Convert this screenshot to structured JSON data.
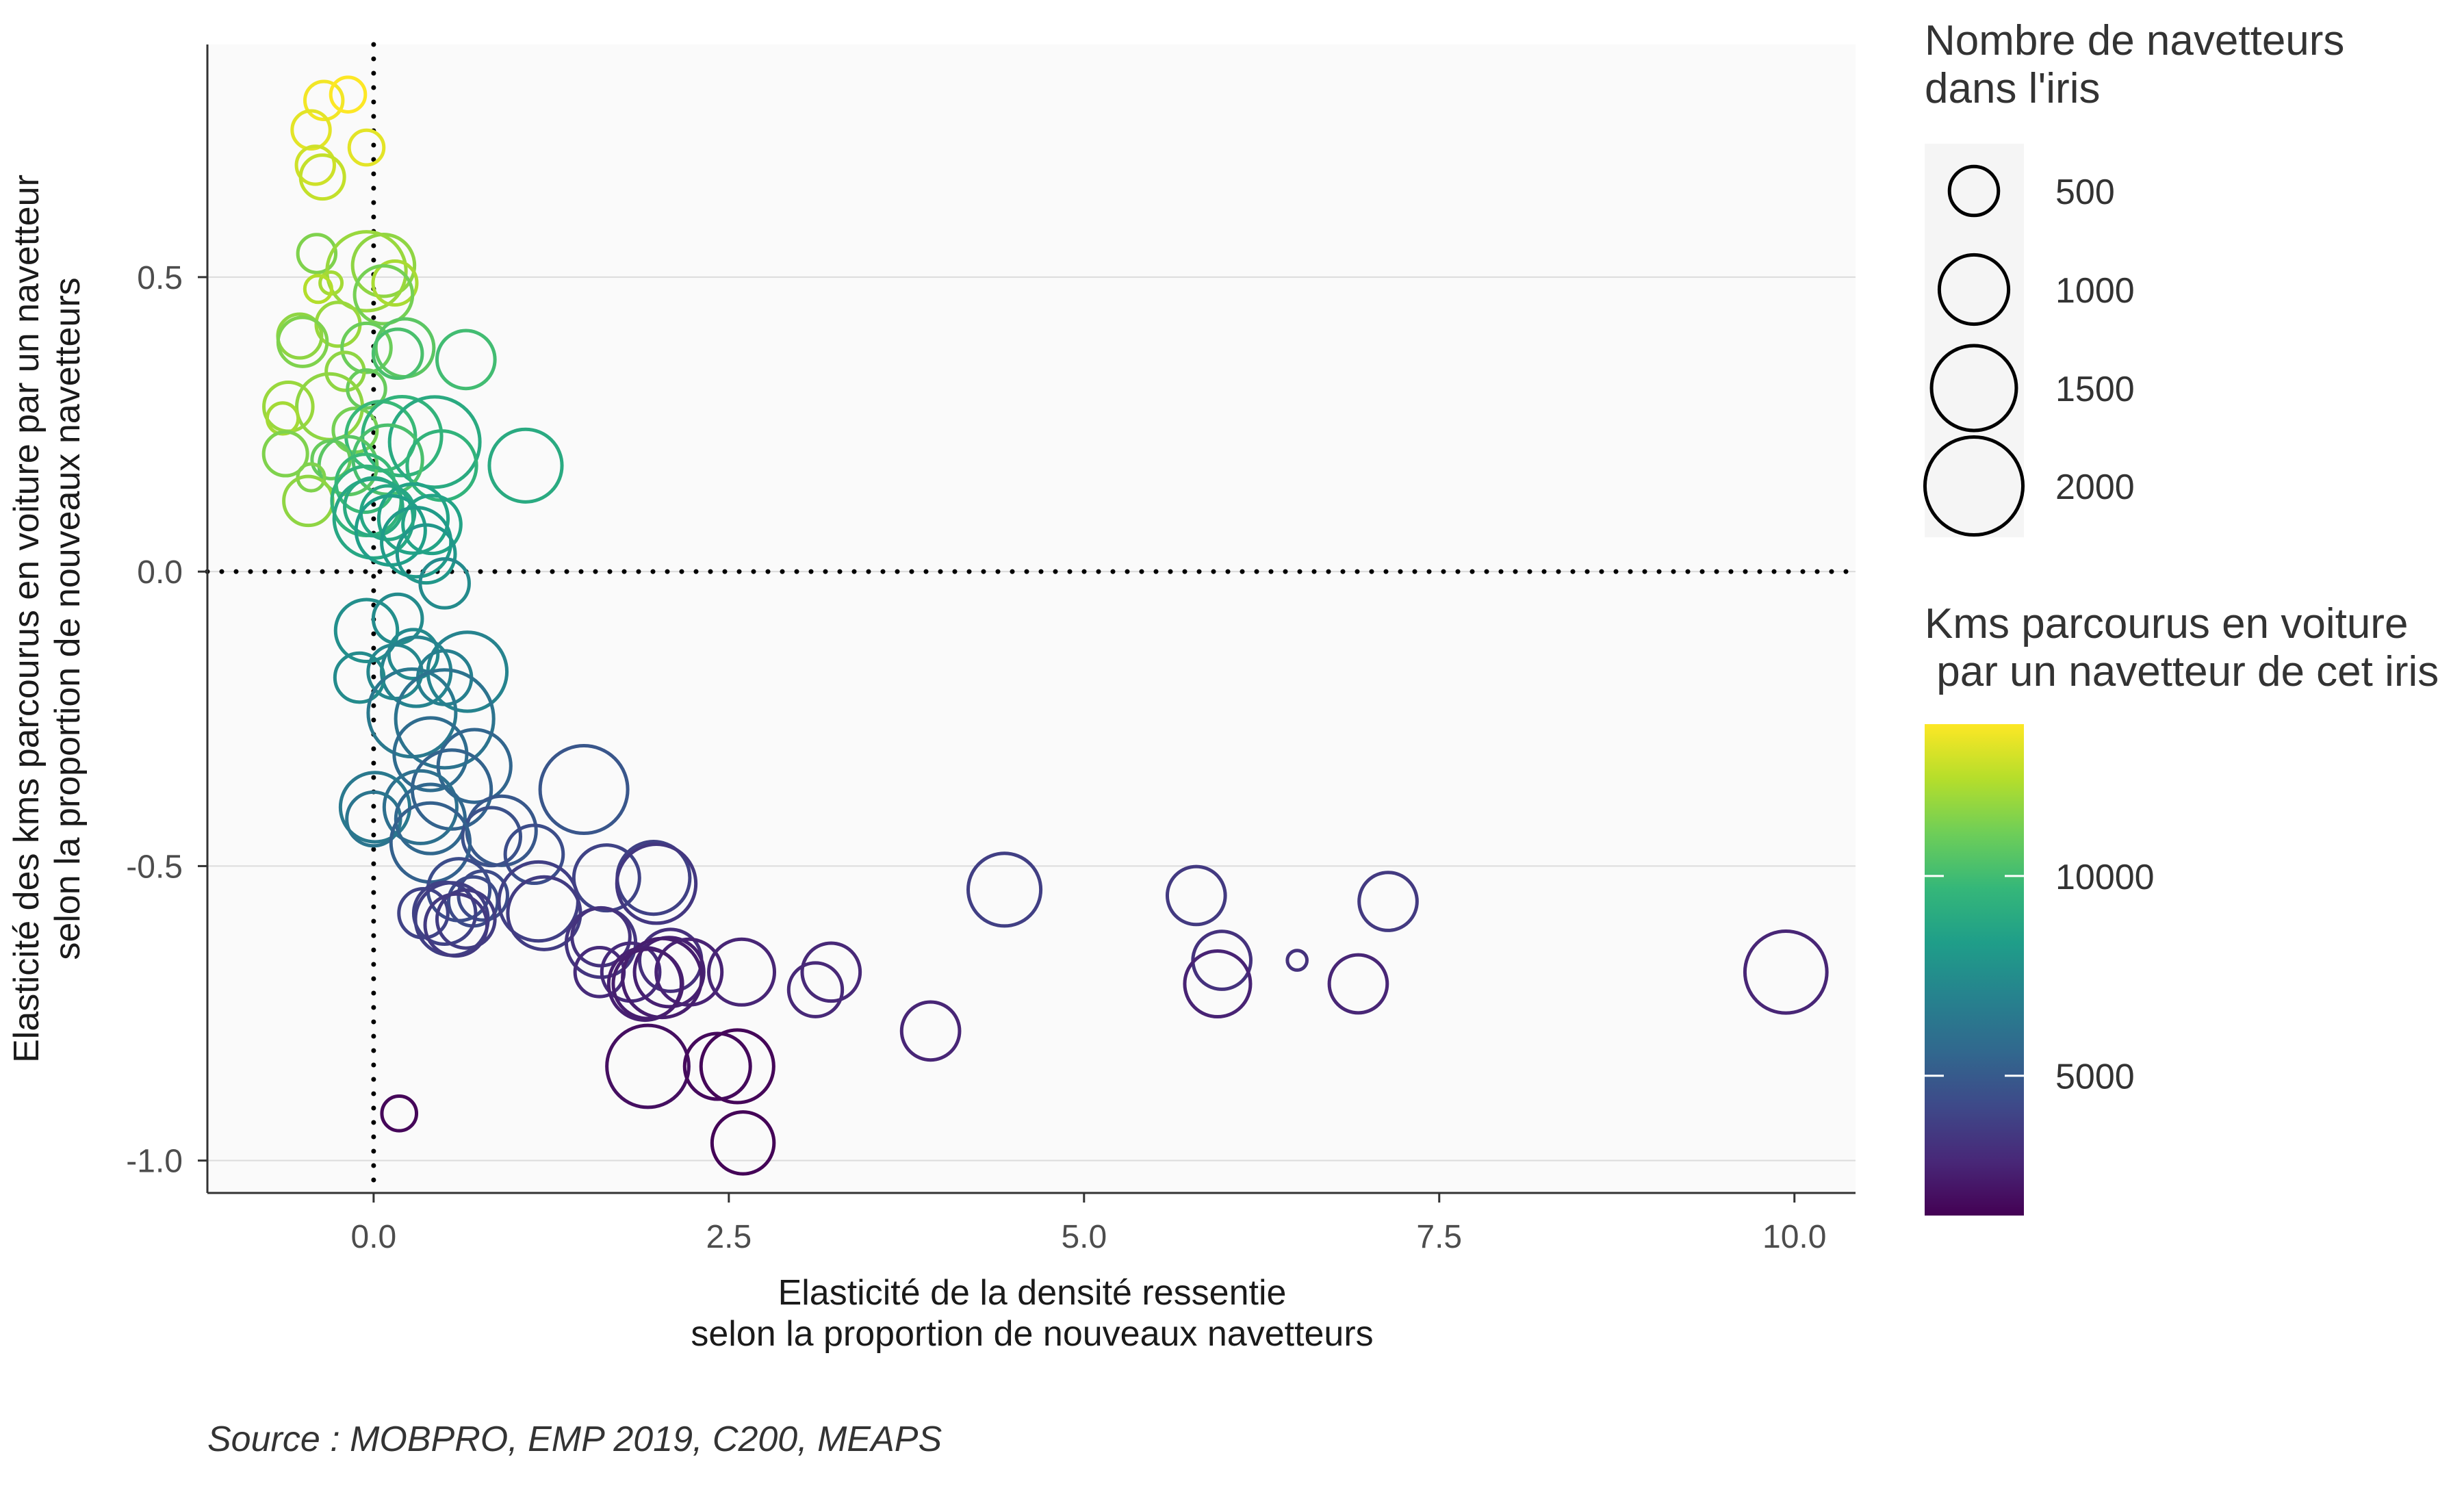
{
  "chart_data": {
    "type": "scatter",
    "xlabel": [
      "Elasticité de la densité ressentie",
      "selon la proportion de nouveaux navetteurs"
    ],
    "ylabel": [
      "Elasticité des kms parcourus en voiture par un navetteur",
      "selon la proportion de nouveaux navetteurs"
    ],
    "xlim": [
      -1.17,
      10.43
    ],
    "ylim": [
      -1.055,
      0.895
    ],
    "x_ticks": [
      0,
      2.5,
      5,
      7.5,
      10
    ],
    "x_tick_labels": [
      "0.0",
      "2.5",
      "5.0",
      "7.5",
      "10.0"
    ],
    "y_ticks": [
      0.5,
      0,
      -0.5,
      -1
    ],
    "y_tick_labels": [
      "0.5",
      "0.0",
      "-0.5",
      "-1.0"
    ],
    "reference_lines": {
      "x": 0,
      "y": 0,
      "style": "dotted"
    },
    "grid": true,
    "size_legend": {
      "title": [
        "Nombre de navetteurs",
        "dans l'iris"
      ],
      "values": [
        500,
        1000,
        1500,
        2000
      ],
      "labels": [
        "500",
        "1000",
        "1500",
        "2000"
      ]
    },
    "color_legend": {
      "title": [
        "Kms parcourus en voiture",
        " par un navetteur de cet iris"
      ],
      "min": 1500,
      "max": 13800,
      "ticks": [
        10000,
        5000
      ],
      "tick_labels": [
        "10000",
        "5000"
      ],
      "palette": "viridis",
      "stops": [
        "#440154",
        "#482878",
        "#3e4989",
        "#31688e",
        "#26828e",
        "#1f9e89",
        "#35b779",
        "#6ece58",
        "#b5de2b",
        "#fde725"
      ]
    },
    "points": [
      {
        "x": -0.35,
        "y": 0.8,
        "size": 300,
        "color": 13600
      },
      {
        "x": -0.18,
        "y": 0.81,
        "size": 250,
        "color": 13800
      },
      {
        "x": -0.44,
        "y": 0.75,
        "size": 300,
        "color": 13300
      },
      {
        "x": -0.05,
        "y": 0.72,
        "size": 250,
        "color": 13300
      },
      {
        "x": -0.41,
        "y": 0.69,
        "size": 300,
        "color": 12900
      },
      {
        "x": -0.36,
        "y": 0.67,
        "size": 400,
        "color": 12700
      },
      {
        "x": -0.4,
        "y": 0.54,
        "size": 300,
        "color": 11400
      },
      {
        "x": 0.07,
        "y": 0.52,
        "size": 800,
        "color": 11700
      },
      {
        "x": -0.05,
        "y": 0.51,
        "size": 1300,
        "color": 11900
      },
      {
        "x": 0.15,
        "y": 0.49,
        "size": 400,
        "color": 12200
      },
      {
        "x": -0.3,
        "y": 0.49,
        "size": 100,
        "color": 12100
      },
      {
        "x": -0.39,
        "y": 0.48,
        "size": 150,
        "color": 12400
      },
      {
        "x": 0.07,
        "y": 0.47,
        "size": 700,
        "color": 11200
      },
      {
        "x": -0.25,
        "y": 0.42,
        "size": 400,
        "color": 11900
      },
      {
        "x": -0.52,
        "y": 0.4,
        "size": 400,
        "color": 11700
      },
      {
        "x": -0.5,
        "y": 0.39,
        "size": 500,
        "color": 11400
      },
      {
        "x": -0.05,
        "y": 0.38,
        "size": 500,
        "color": 11000
      },
      {
        "x": 0.22,
        "y": 0.38,
        "size": 700,
        "color": 10600
      },
      {
        "x": 0.17,
        "y": 0.37,
        "size": 500,
        "color": 10200
      },
      {
        "x": 0.65,
        "y": 0.36,
        "size": 700,
        "color": 10000
      },
      {
        "x": -0.2,
        "y": 0.34,
        "size": 300,
        "color": 11700
      },
      {
        "x": -0.05,
        "y": 0.31,
        "size": 300,
        "color": 10900
      },
      {
        "x": -0.6,
        "y": 0.28,
        "size": 500,
        "color": 11900
      },
      {
        "x": -0.31,
        "y": 0.28,
        "size": 900,
        "color": 11700
      },
      {
        "x": -0.64,
        "y": 0.26,
        "size": 200,
        "color": 12100
      },
      {
        "x": -0.13,
        "y": 0.24,
        "size": 400,
        "color": 11200
      },
      {
        "x": 0.05,
        "y": 0.23,
        "size": 1000,
        "color": 9800
      },
      {
        "x": 0.2,
        "y": 0.23,
        "size": 1300,
        "color": 9500
      },
      {
        "x": 0.43,
        "y": 0.22,
        "size": 1700,
        "color": 9000
      },
      {
        "x": -0.62,
        "y": 0.2,
        "size": 400,
        "color": 11400
      },
      {
        "x": -0.3,
        "y": 0.19,
        "size": 300,
        "color": 10900
      },
      {
        "x": 0.1,
        "y": 0.19,
        "size": 1000,
        "color": 10200
      },
      {
        "x": 0.48,
        "y": 0.18,
        "size": 1000,
        "color": 9500
      },
      {
        "x": 1.07,
        "y": 0.18,
        "size": 1100,
        "color": 9000
      },
      {
        "x": -0.18,
        "y": 0.18,
        "size": 700,
        "color": 10600
      },
      {
        "x": -0.44,
        "y": 0.16,
        "size": 150,
        "color": 11400
      },
      {
        "x": -0.06,
        "y": 0.15,
        "size": 700,
        "color": 9800
      },
      {
        "x": -0.46,
        "y": 0.12,
        "size": 500,
        "color": 11700
      },
      {
        "x": -0.05,
        "y": 0.12,
        "size": 1000,
        "color": 9500
      },
      {
        "x": 0.0,
        "y": 0.11,
        "size": 700,
        "color": 9000
      },
      {
        "x": 0.1,
        "y": 0.1,
        "size": 600,
        "color": 8800
      },
      {
        "x": 0.28,
        "y": 0.09,
        "size": 1000,
        "color": 8600
      },
      {
        "x": 0.0,
        "y": 0.09,
        "size": 1300,
        "color": 8800
      },
      {
        "x": 0.41,
        "y": 0.08,
        "size": 700,
        "color": 8600
      },
      {
        "x": 0.12,
        "y": 0.07,
        "size": 1000,
        "color": 8400
      },
      {
        "x": 0.3,
        "y": 0.05,
        "size": 1000,
        "color": 8200
      },
      {
        "x": 0.37,
        "y": 0.03,
        "size": 700,
        "color": 8000
      },
      {
        "x": 0.5,
        "y": -0.02,
        "size": 500,
        "color": 7400
      },
      {
        "x": 0.17,
        "y": -0.08,
        "size": 500,
        "color": 7400
      },
      {
        "x": -0.05,
        "y": -0.1,
        "size": 800,
        "color": 7600
      },
      {
        "x": 0.28,
        "y": -0.14,
        "size": 500,
        "color": 7300
      },
      {
        "x": 0.66,
        "y": -0.17,
        "size": 1300,
        "color": 7000
      },
      {
        "x": 0.15,
        "y": -0.17,
        "size": 600,
        "color": 7200
      },
      {
        "x": 0.3,
        "y": -0.17,
        "size": 1000,
        "color": 7000
      },
      {
        "x": -0.1,
        "y": -0.18,
        "size": 500,
        "color": 7400
      },
      {
        "x": 0.5,
        "y": -0.18,
        "size": 600,
        "color": 6800
      },
      {
        "x": 0.27,
        "y": -0.24,
        "size": 1600,
        "color": 6500
      },
      {
        "x": 0.5,
        "y": -0.25,
        "size": 2000,
        "color": 6200
      },
      {
        "x": 0.4,
        "y": -0.31,
        "size": 1100,
        "color": 5800
      },
      {
        "x": 0.71,
        "y": -0.33,
        "size": 1100,
        "color": 5500
      },
      {
        "x": 0.55,
        "y": -0.37,
        "size": 1300,
        "color": 5400
      },
      {
        "x": 1.48,
        "y": -0.37,
        "size": 1600,
        "color": 4800
      },
      {
        "x": 0.33,
        "y": -0.4,
        "size": 1100,
        "color": 6000
      },
      {
        "x": 0.01,
        "y": -0.4,
        "size": 1000,
        "color": 6500
      },
      {
        "x": 0.0,
        "y": -0.42,
        "size": 600,
        "color": 6300
      },
      {
        "x": 0.4,
        "y": -0.42,
        "size": 1000,
        "color": 5600
      },
      {
        "x": 0.9,
        "y": -0.44,
        "size": 1000,
        "color": 4900
      },
      {
        "x": 0.83,
        "y": -0.45,
        "size": 700,
        "color": 4600
      },
      {
        "x": 0.4,
        "y": -0.46,
        "size": 1300,
        "color": 5300
      },
      {
        "x": 1.13,
        "y": -0.48,
        "size": 700,
        "color": 4400
      },
      {
        "x": 1.64,
        "y": -0.52,
        "size": 900,
        "color": 4000
      },
      {
        "x": 1.97,
        "y": -0.52,
        "size": 1100,
        "color": 3900
      },
      {
        "x": 1.99,
        "y": -0.53,
        "size": 1300,
        "color": 3500
      },
      {
        "x": 0.6,
        "y": -0.54,
        "size": 800,
        "color": 4400
      },
      {
        "x": 4.44,
        "y": -0.54,
        "size": 1100,
        "color": 3800
      },
      {
        "x": 0.77,
        "y": -0.55,
        "size": 500,
        "color": 4300
      },
      {
        "x": 0.7,
        "y": -0.56,
        "size": 500,
        "color": 4300
      },
      {
        "x": 5.79,
        "y": -0.55,
        "size": 700,
        "color": 3600
      },
      {
        "x": 7.14,
        "y": -0.56,
        "size": 700,
        "color": 3600
      },
      {
        "x": 1.16,
        "y": -0.56,
        "size": 1300,
        "color": 3800
      },
      {
        "x": 1.2,
        "y": -0.58,
        "size": 1100,
        "color": 3700
      },
      {
        "x": 0.35,
        "y": -0.58,
        "size": 500,
        "color": 4000
      },
      {
        "x": 0.55,
        "y": -0.59,
        "size": 1100,
        "color": 3800
      },
      {
        "x": 0.5,
        "y": -0.58,
        "size": 800,
        "color": 3900
      },
      {
        "x": 0.65,
        "y": -0.59,
        "size": 700,
        "color": 3700
      },
      {
        "x": 0.58,
        "y": -0.6,
        "size": 800,
        "color": 3600
      },
      {
        "x": 1.6,
        "y": -0.63,
        "size": 1000,
        "color": 3400
      },
      {
        "x": 1.6,
        "y": -0.62,
        "size": 700,
        "color": 3300
      },
      {
        "x": 2.09,
        "y": -0.66,
        "size": 800,
        "color": 3200
      },
      {
        "x": 5.97,
        "y": -0.66,
        "size": 700,
        "color": 3300
      },
      {
        "x": 6.5,
        "y": -0.66,
        "size": 80,
        "color": 3300
      },
      {
        "x": 9.94,
        "y": -0.68,
        "size": 1400,
        "color": 2800
      },
      {
        "x": 1.59,
        "y": -0.68,
        "size": 500,
        "color": 3000
      },
      {
        "x": 1.81,
        "y": -0.68,
        "size": 700,
        "color": 3000
      },
      {
        "x": 2.08,
        "y": -0.68,
        "size": 1000,
        "color": 2600
      },
      {
        "x": 2.22,
        "y": -0.68,
        "size": 900,
        "color": 2700
      },
      {
        "x": 2.59,
        "y": -0.68,
        "size": 900,
        "color": 2800
      },
      {
        "x": 3.22,
        "y": -0.68,
        "size": 700,
        "color": 2900
      },
      {
        "x": 2.03,
        "y": -0.69,
        "size": 1300,
        "color": 2500
      },
      {
        "x": 1.91,
        "y": -0.7,
        "size": 1100,
        "color": 2600
      },
      {
        "x": 5.94,
        "y": -0.7,
        "size": 900,
        "color": 2700
      },
      {
        "x": 6.93,
        "y": -0.7,
        "size": 700,
        "color": 2800
      },
      {
        "x": 1.93,
        "y": -0.7,
        "size": 1000,
        "color": 2500
      },
      {
        "x": 3.11,
        "y": -0.71,
        "size": 600,
        "color": 2900
      },
      {
        "x": 3.92,
        "y": -0.78,
        "size": 700,
        "color": 2800
      },
      {
        "x": 1.93,
        "y": -0.84,
        "size": 1400,
        "color": 2000
      },
      {
        "x": 2.42,
        "y": -0.84,
        "size": 900,
        "color": 1800
      },
      {
        "x": 2.56,
        "y": -0.84,
        "size": 1100,
        "color": 1700
      },
      {
        "x": 2.6,
        "y": -0.97,
        "size": 800,
        "color": 1600
      },
      {
        "x": 0.18,
        "y": -0.92,
        "size": 250,
        "color": 1700
      }
    ]
  },
  "caption": "Source : MOBPRO, EMP 2019, C200, MEAPS"
}
